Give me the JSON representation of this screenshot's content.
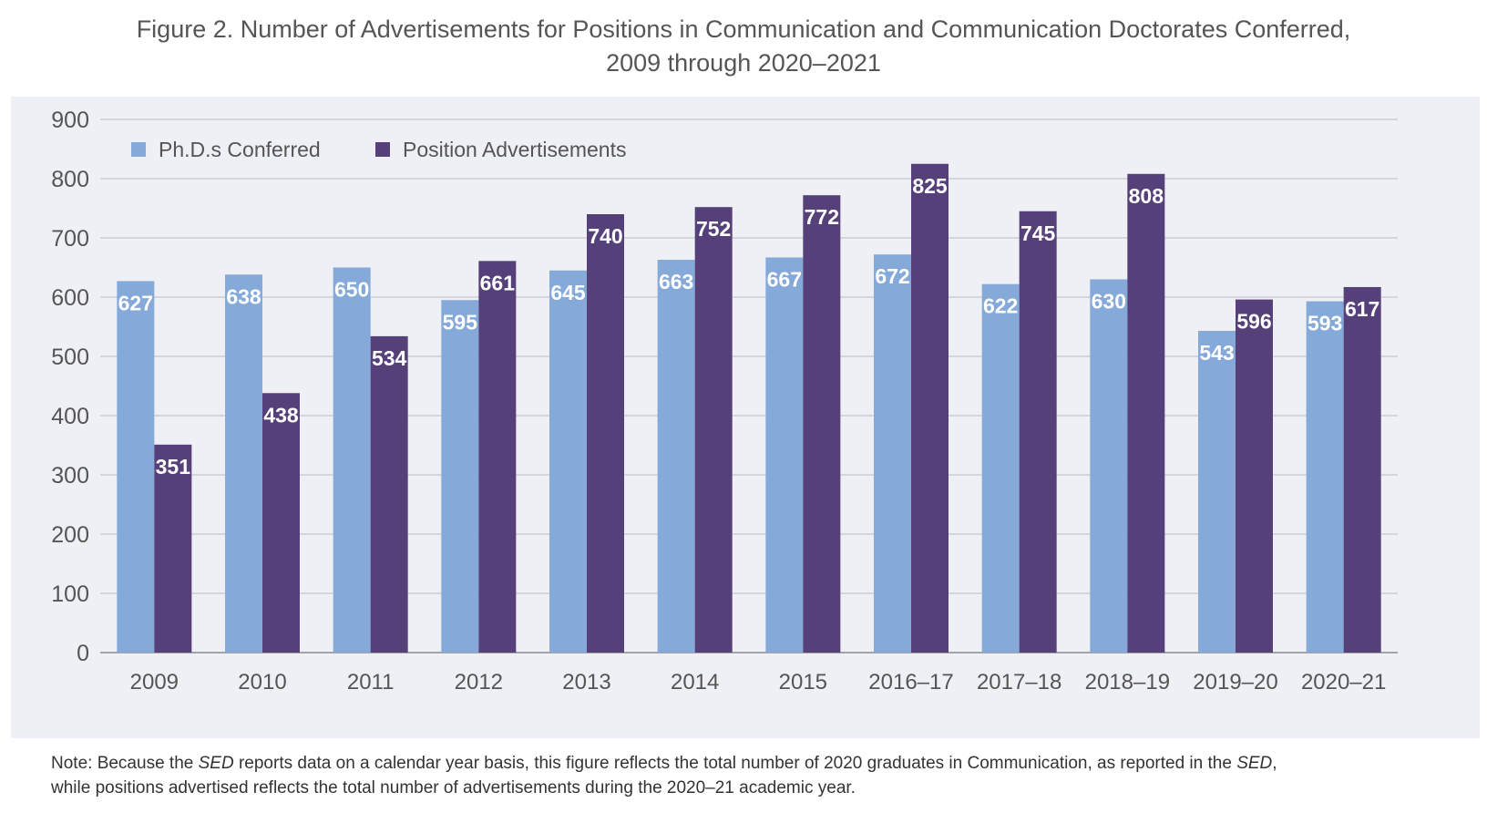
{
  "title": {
    "line1": "Figure 2. Number of Advertisements for Positions in Communication and Communication Doctorates Conferred,",
    "line2": "2009 through 2020–2021"
  },
  "note": {
    "prefix": "Note: Because the ",
    "sed_1": "SED",
    "middle": " reports data on a calendar year basis, this figure reflects the total number of 2020 graduates in Communication, as reported in the ",
    "sed_2": "SED",
    "suffix": ",",
    "line2": "while positions advertised reflects the total number of advertisements during the 2020–21 academic year."
  },
  "chart_data": {
    "type": "bar",
    "categories": [
      "2009",
      "2010",
      "2011",
      "2012",
      "2013",
      "2014",
      "2015",
      "2016–17",
      "2017–18",
      "2018–19",
      "2019–20",
      "2020–21"
    ],
    "series": [
      {
        "name": "Ph.D.s Conferred",
        "color": "#85a9d8",
        "values": [
          627,
          638,
          650,
          595,
          645,
          663,
          667,
          672,
          622,
          630,
          543,
          593
        ]
      },
      {
        "name": "Position Advertisements",
        "color": "#56407a",
        "values": [
          351,
          438,
          534,
          661,
          740,
          752,
          772,
          825,
          745,
          808,
          596,
          617
        ]
      }
    ],
    "ylim": [
      0,
      900
    ],
    "yticks": [
      0,
      100,
      200,
      300,
      400,
      500,
      600,
      700,
      800,
      900
    ],
    "grid": true,
    "legend": "top-left",
    "data_labels": true
  }
}
